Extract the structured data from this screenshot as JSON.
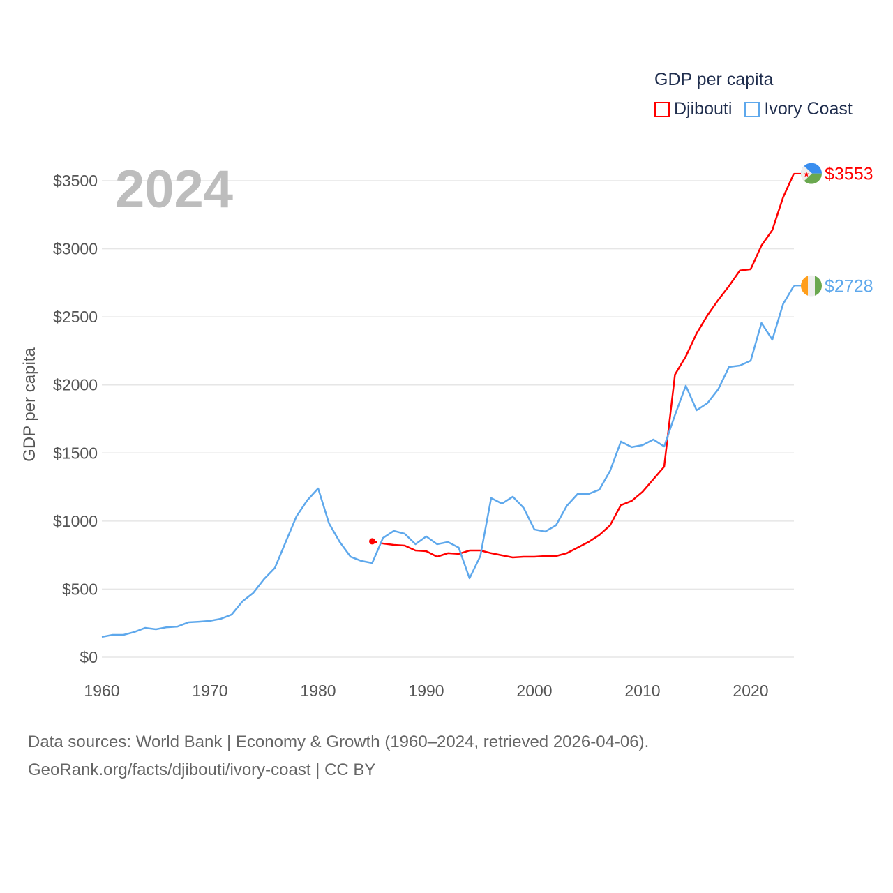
{
  "chart_data": {
    "type": "line",
    "title": "GDP per capita",
    "ylabel": "GDP per capita",
    "xlabel": "",
    "year_label": "2024",
    "xlim": [
      1960,
      2024
    ],
    "ylim": [
      0,
      3500
    ],
    "xticks": [
      1960,
      1970,
      1980,
      1990,
      2000,
      2010,
      2020
    ],
    "yticks": [
      0,
      500,
      1000,
      1500,
      2000,
      2500,
      3000,
      3500
    ],
    "ytick_labels": [
      "$0",
      "$500",
      "$1000",
      "$1500",
      "$2000",
      "$2500",
      "$3000",
      "$3500"
    ],
    "grid": true,
    "legend_placement": "top-right",
    "series": [
      {
        "name": "Djibouti",
        "color": "#ff0000",
        "end_label": "$3553",
        "start_year": 1985,
        "gap_after_first": true,
        "values": [
          851,
          835,
          825,
          820,
          784,
          779,
          738,
          764,
          759,
          784,
          784,
          764,
          748,
          733,
          738,
          738,
          743,
          743,
          764,
          805,
          846,
          897,
          969,
          1117,
          1148,
          1215,
          1307,
          1399,
          2076,
          2209,
          2378,
          2511,
          2624,
          2727,
          2840,
          2850,
          3024,
          3137,
          3378,
          3553
        ]
      },
      {
        "name": "Ivory Coast",
        "color": "#5ea8ec",
        "end_label": "$2728",
        "start_year": 1960,
        "gap_after_first": false,
        "values": [
          149,
          164,
          164,
          185,
          215,
          205,
          220,
          225,
          256,
          261,
          267,
          282,
          313,
          410,
          472,
          574,
          656,
          846,
          1035,
          1153,
          1240,
          984,
          846,
          738,
          707,
          692,
          876,
          928,
          907,
          830,
          887,
          830,
          846,
          805,
          579,
          743,
          1169,
          1128,
          1179,
          1097,
          938,
          923,
          969,
          1112,
          1199,
          1199,
          1230,
          1369,
          1584,
          1543,
          1558,
          1599,
          1548,
          1779,
          1994,
          1814,
          1866,
          1968,
          2132,
          2142,
          2178,
          2455,
          2332,
          2594,
          2728
        ]
      }
    ]
  },
  "footer": {
    "line1": "Data sources: World Bank | Economy & Growth (1960–2024, retrieved 2026-04-06).",
    "line2": "GeoRank.org/facts/djibouti/ivory-coast | CC BY"
  }
}
